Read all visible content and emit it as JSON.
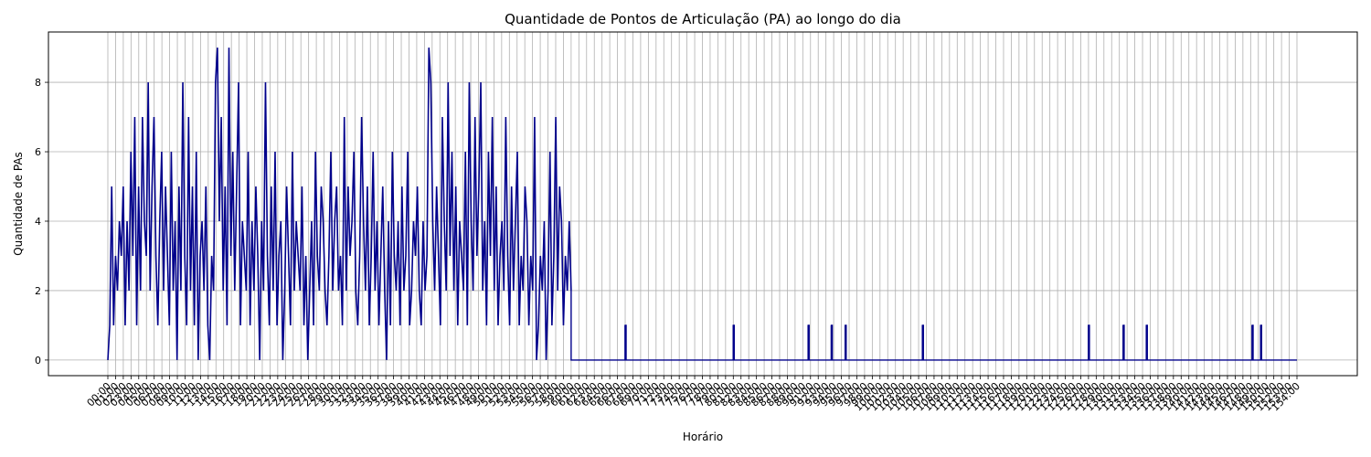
{
  "chart_data": {
    "type": "line",
    "title": "Quantidade de Pontos de Articulação (PA) ao longo do dia",
    "xlabel": "Horário",
    "ylabel": "Quantidade de PAs",
    "grid": true,
    "ylim": [
      -0.45,
      9.45
    ],
    "y_ticks": [
      0,
      2,
      4,
      6,
      8
    ],
    "x_range_hours": [
      0,
      154
    ],
    "x_tick_step_hours": 1,
    "x_tick_format": "HH:00",
    "line_color": "#00008b",
    "active_period_hours": [
      0,
      60
    ],
    "active_period_note_free": false,
    "series": [
      {
        "values_active_segment_sample": [
          0,
          1,
          5,
          1,
          3,
          2,
          4,
          3,
          5,
          1,
          4,
          2,
          6,
          3,
          7,
          1,
          5,
          2,
          7,
          4,
          3,
          8,
          2,
          5,
          7,
          3,
          1,
          4,
          6,
          2,
          5,
          3,
          1,
          6,
          2,
          4,
          0,
          5,
          2,
          8,
          3,
          1,
          7,
          2,
          5,
          1,
          6,
          0,
          3,
          4,
          2,
          5,
          1,
          0,
          3,
          2,
          8,
          9,
          4,
          7,
          2,
          5,
          1,
          9,
          3,
          6,
          2,
          5,
          8,
          1,
          4,
          3,
          2,
          6,
          1,
          4,
          2,
          5,
          3,
          0,
          4,
          2,
          8,
          3,
          1,
          5,
          2,
          6,
          1,
          3,
          4,
          0,
          2,
          5,
          3,
          1,
          6,
          2,
          4,
          3,
          2,
          5,
          1,
          3,
          0,
          2,
          4,
          1,
          6,
          3,
          2,
          5,
          4,
          2,
          1,
          3,
          6,
          2,
          4,
          5,
          2,
          3,
          1,
          7,
          2,
          5,
          3,
          4,
          6,
          2,
          1,
          3,
          7,
          4,
          2,
          5,
          1,
          3,
          6,
          2,
          4,
          1,
          3,
          5,
          2,
          0,
          4,
          1,
          6,
          3,
          2,
          4,
          1,
          5,
          2,
          3,
          6,
          1,
          2,
          4,
          3,
          5,
          2,
          1,
          4,
          2,
          3,
          9,
          8,
          4,
          2,
          5,
          3,
          1,
          7,
          4,
          2,
          8,
          3,
          6,
          2,
          5,
          1,
          4,
          3,
          2,
          6,
          1,
          8,
          4,
          2,
          7,
          3,
          5,
          8,
          2,
          4,
          1,
          6,
          3,
          7,
          2,
          5,
          1,
          3,
          4,
          2,
          7,
          3,
          1,
          5,
          2,
          4,
          6,
          1,
          3,
          2,
          5,
          4,
          1,
          3,
          2,
          7,
          0,
          1,
          3,
          2,
          4,
          0,
          2,
          6,
          1,
          3,
          7,
          2,
          5,
          4,
          1,
          3,
          2,
          4,
          2
        ]
      }
    ],
    "spikes": [
      {
        "x_hour": 67,
        "y": 1
      },
      {
        "x_hour": 81,
        "y": 1
      },
      {
        "x_hour": 90.7,
        "y": 1
      },
      {
        "x_hour": 93.7,
        "y": 1
      },
      {
        "x_hour": 95.5,
        "y": 1
      },
      {
        "x_hour": 105.5,
        "y": 1
      },
      {
        "x_hour": 127,
        "y": 1
      },
      {
        "x_hour": 131.5,
        "y": 1
      },
      {
        "x_hour": 134.5,
        "y": 1
      },
      {
        "x_hour": 148.2,
        "y": 1
      },
      {
        "x_hour": 149.3,
        "y": 1
      }
    ]
  }
}
